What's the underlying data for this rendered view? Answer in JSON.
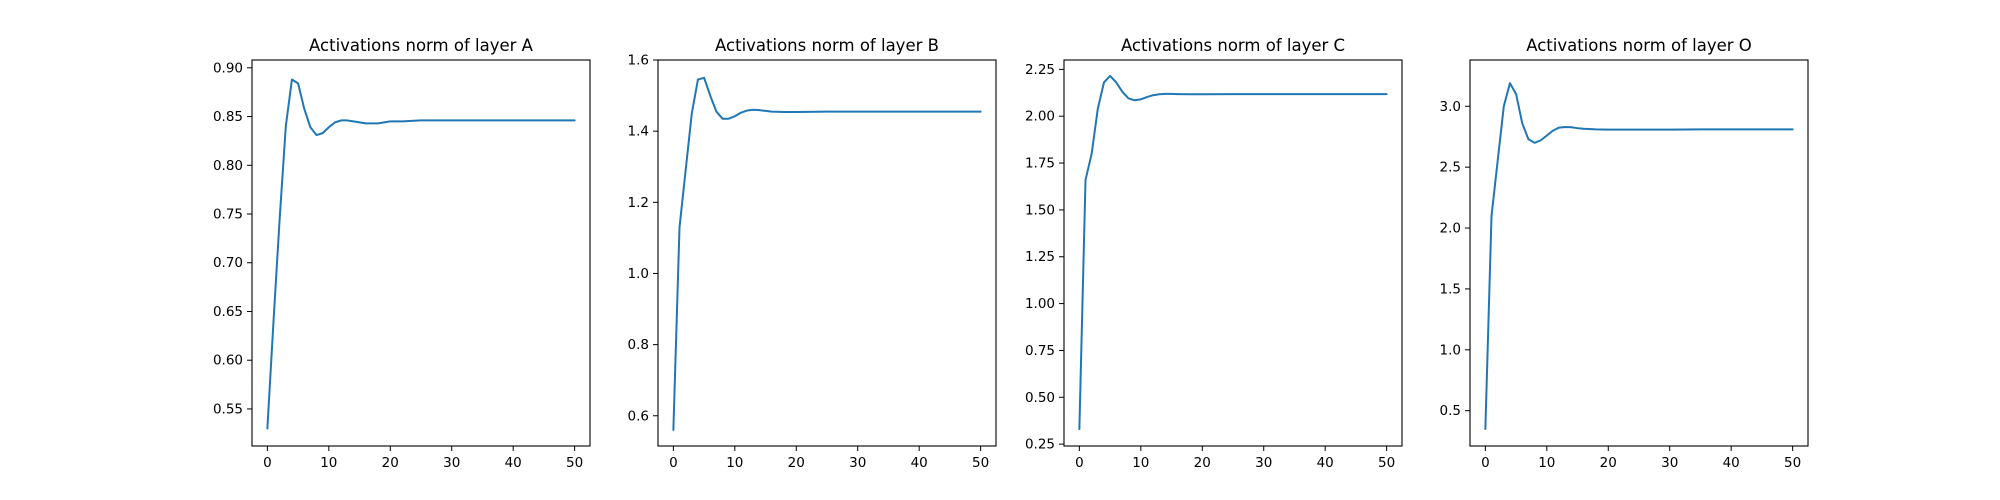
{
  "chart_data": [
    {
      "type": "line",
      "title": "Activations norm of layer A",
      "xlim": [
        -2.5,
        52.5
      ],
      "ylim": [
        0.512,
        0.908
      ],
      "xticks": [
        0,
        10,
        20,
        30,
        40,
        50
      ],
      "xtick_labels": [
        "0",
        "10",
        "20",
        "30",
        "40",
        "50"
      ],
      "yticks": [
        0.55,
        0.6,
        0.65,
        0.7,
        0.75,
        0.8,
        0.85,
        0.9
      ],
      "ytick_labels": [
        "0.55",
        "0.60",
        "0.65",
        "0.70",
        "0.75",
        "0.80",
        "0.85",
        "0.90"
      ],
      "grid": false,
      "series": [
        {
          "color": "#1f77b4",
          "x": [
            0,
            1,
            2,
            3,
            4,
            5,
            6,
            7,
            8,
            9,
            10,
            11,
            12,
            13,
            14,
            15,
            16,
            17,
            18,
            19,
            20,
            22,
            25,
            30,
            35,
            40,
            45,
            50
          ],
          "values": [
            0.53,
            0.64,
            0.745,
            0.84,
            0.888,
            0.884,
            0.858,
            0.839,
            0.831,
            0.833,
            0.839,
            0.844,
            0.846,
            0.846,
            0.845,
            0.844,
            0.843,
            0.843,
            0.843,
            0.844,
            0.845,
            0.845,
            0.846,
            0.846,
            0.846,
            0.846,
            0.846,
            0.846
          ]
        }
      ]
    },
    {
      "type": "line",
      "title": "Activations norm of layer B",
      "xlim": [
        -2.5,
        52.5
      ],
      "ylim": [
        0.515,
        1.6
      ],
      "xticks": [
        0,
        10,
        20,
        30,
        40,
        50
      ],
      "xtick_labels": [
        "0",
        "10",
        "20",
        "30",
        "40",
        "50"
      ],
      "yticks": [
        0.6,
        0.8,
        1.0,
        1.2,
        1.4,
        1.6
      ],
      "ytick_labels": [
        "0.6",
        "0.8",
        "1.0",
        "1.2",
        "1.4",
        "1.6"
      ],
      "grid": false,
      "series": [
        {
          "color": "#1f77b4",
          "x": [
            0,
            1,
            2,
            3,
            4,
            5,
            6,
            7,
            8,
            9,
            10,
            11,
            12,
            13,
            14,
            15,
            16,
            18,
            20,
            25,
            30,
            35,
            40,
            45,
            50
          ],
          "values": [
            0.56,
            1.13,
            1.29,
            1.45,
            1.545,
            1.55,
            1.5,
            1.455,
            1.435,
            1.435,
            1.442,
            1.452,
            1.458,
            1.46,
            1.459,
            1.457,
            1.455,
            1.454,
            1.454,
            1.455,
            1.455,
            1.455,
            1.455,
            1.455,
            1.455
          ]
        }
      ]
    },
    {
      "type": "line",
      "title": "Activations norm of layer C",
      "xlim": [
        -2.5,
        52.5
      ],
      "ylim": [
        0.24,
        2.3
      ],
      "xticks": [
        0,
        10,
        20,
        30,
        40,
        50
      ],
      "xtick_labels": [
        "0",
        "10",
        "20",
        "30",
        "40",
        "50"
      ],
      "yticks": [
        0.25,
        0.5,
        0.75,
        1.0,
        1.25,
        1.5,
        1.75,
        2.0,
        2.25
      ],
      "ytick_labels": [
        "0.25",
        "0.50",
        "0.75",
        "1.00",
        "1.25",
        "1.50",
        "1.75",
        "2.00",
        "2.25"
      ],
      "grid": false,
      "series": [
        {
          "color": "#1f77b4",
          "x": [
            0,
            1,
            2,
            3,
            4,
            5,
            6,
            7,
            8,
            9,
            10,
            11,
            12,
            13,
            14,
            15,
            16,
            18,
            20,
            25,
            30,
            35,
            40,
            45,
            50
          ],
          "values": [
            0.33,
            1.66,
            1.8,
            2.04,
            2.18,
            2.215,
            2.18,
            2.13,
            2.095,
            2.085,
            2.09,
            2.102,
            2.112,
            2.117,
            2.119,
            2.119,
            2.118,
            2.117,
            2.117,
            2.118,
            2.118,
            2.118,
            2.118,
            2.118,
            2.118
          ]
        }
      ]
    },
    {
      "type": "line",
      "title": "Activations norm of layer O",
      "xlim": [
        -2.5,
        52.5
      ],
      "ylim": [
        0.21,
        3.38
      ],
      "xticks": [
        0,
        10,
        20,
        30,
        40,
        50
      ],
      "xtick_labels": [
        "0",
        "10",
        "20",
        "30",
        "40",
        "50"
      ],
      "yticks": [
        0.5,
        1.0,
        1.5,
        2.0,
        2.5,
        3.0
      ],
      "ytick_labels": [
        "0.5",
        "1.0",
        "1.5",
        "2.0",
        "2.5",
        "3.0"
      ],
      "grid": false,
      "series": [
        {
          "color": "#1f77b4",
          "x": [
            0,
            1,
            2,
            3,
            4,
            5,
            6,
            7,
            8,
            9,
            10,
            11,
            12,
            13,
            14,
            15,
            16,
            18,
            20,
            25,
            30,
            35,
            40,
            45,
            50
          ],
          "values": [
            0.35,
            2.1,
            2.55,
            3.0,
            3.19,
            3.1,
            2.86,
            2.73,
            2.7,
            2.72,
            2.76,
            2.8,
            2.825,
            2.83,
            2.828,
            2.82,
            2.815,
            2.81,
            2.808,
            2.808,
            2.808,
            2.81,
            2.81,
            2.81,
            2.81
          ]
        }
      ]
    }
  ]
}
